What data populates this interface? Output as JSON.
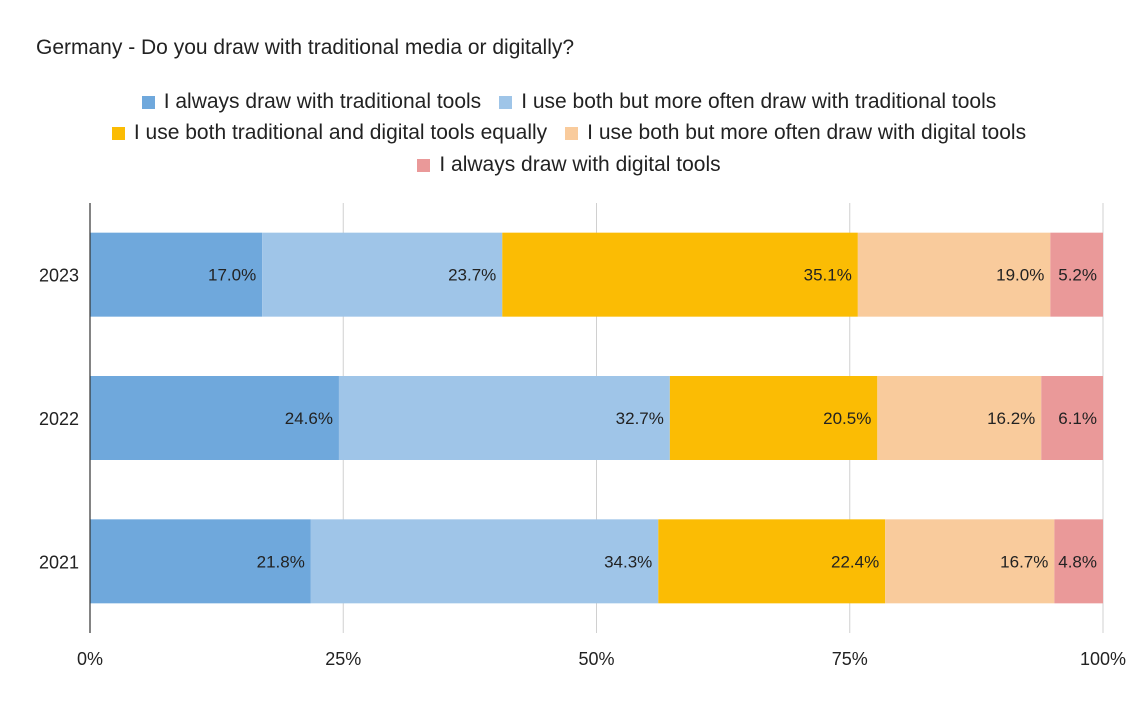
{
  "chart_data": {
    "type": "bar",
    "orientation": "horizontal",
    "stacked": "percent",
    "title": "Germany - Do you draw with traditional media or digitally?",
    "categories": [
      "2023",
      "2022",
      "2021"
    ],
    "series": [
      {
        "name": "I always draw with traditional tools",
        "color": "#6fa8dc",
        "values": [
          17.0,
          24.6,
          21.8
        ],
        "labels": [
          "17.0%",
          "24.6%",
          "21.8%"
        ]
      },
      {
        "name": "I use both but more often draw with traditional tools",
        "color": "#9fc5e8",
        "values": [
          23.7,
          32.7,
          34.3
        ],
        "labels": [
          "23.7%",
          "32.7%",
          "34.3%"
        ]
      },
      {
        "name": "I use both traditional and digital tools equally",
        "color": "#fbbc04",
        "values": [
          35.1,
          20.5,
          22.4
        ],
        "labels": [
          "35.1%",
          "20.5%",
          "22.4%"
        ]
      },
      {
        "name": "I use both but more often draw with digital tools",
        "color": "#f9cb9c",
        "values": [
          19.0,
          16.2,
          16.7
        ],
        "labels": [
          "19.0%",
          "16.2%",
          "16.7%"
        ]
      },
      {
        "name": "I always draw with digital tools",
        "color": "#ea9999",
        "values": [
          5.2,
          6.1,
          4.8
        ],
        "labels": [
          "5.2%",
          "6.1%",
          "4.8%"
        ]
      }
    ],
    "x_ticks": [
      0,
      25,
      50,
      75,
      100
    ],
    "x_tick_labels": [
      "0%",
      "25%",
      "50%",
      "75%",
      "100%"
    ],
    "xlim": [
      0,
      100
    ],
    "legend": "top",
    "grid": true
  }
}
